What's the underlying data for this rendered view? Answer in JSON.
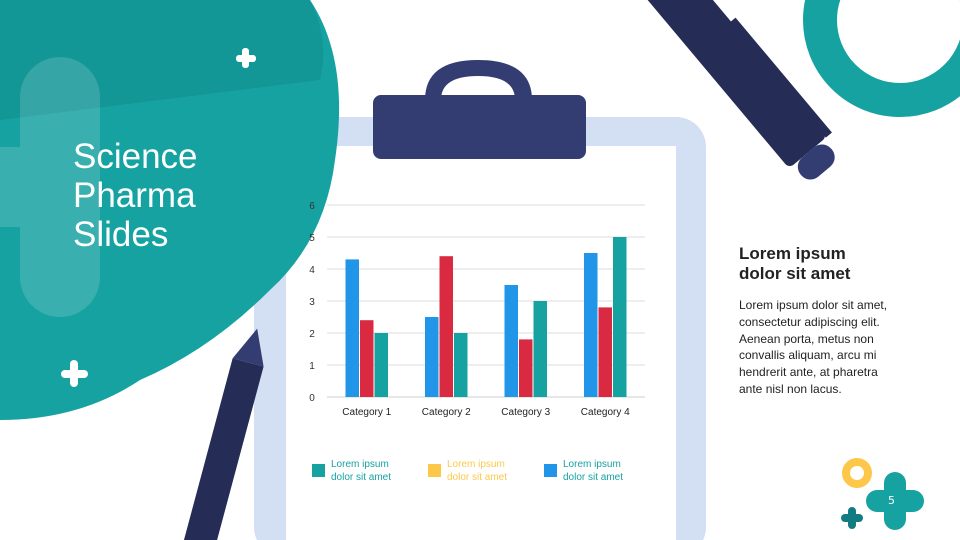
{
  "slide": {
    "title_lines": [
      "Science",
      "Pharma",
      "Slides"
    ],
    "page_number": "5"
  },
  "right_text": {
    "heading": "Lorem ipsum dolor sit amet",
    "body": "Lorem ipsum dolor sit amet, consectetur adipiscing elit. Aenean porta, metus non convallis aliquam, arcu mi hendrerit ante, at pharetra ante nisl non lacus."
  },
  "legend": [
    {
      "label": "Lorem ipsum dolor sit amet",
      "color": "#17a2a2"
    },
    {
      "label": "Lorem ipsum dolor sit amet",
      "color": "#fdc84a"
    },
    {
      "label": "Lorem ipsum dolor sit amet",
      "color": "#2196e8"
    }
  ],
  "colors": {
    "teal": "#17a2a2",
    "navy": "#252c55",
    "clipboard": "#d3dff2",
    "yellow": "#fdc84a"
  },
  "chart_data": {
    "type": "bar",
    "categories": [
      "Category 1",
      "Category 2",
      "Category 3",
      "Category 4"
    ],
    "series": [
      {
        "color": "#2196e8",
        "values": [
          4.3,
          2.5,
          3.5,
          4.5
        ]
      },
      {
        "color": "#d92a41",
        "values": [
          2.4,
          4.4,
          1.8,
          2.8
        ]
      },
      {
        "color": "#17a2a2",
        "values": [
          2.0,
          2.0,
          3.0,
          5.0
        ]
      }
    ],
    "ylim": [
      0,
      6
    ],
    "yticks": [
      0,
      1,
      2,
      3,
      4,
      5,
      6
    ],
    "grid": true
  }
}
